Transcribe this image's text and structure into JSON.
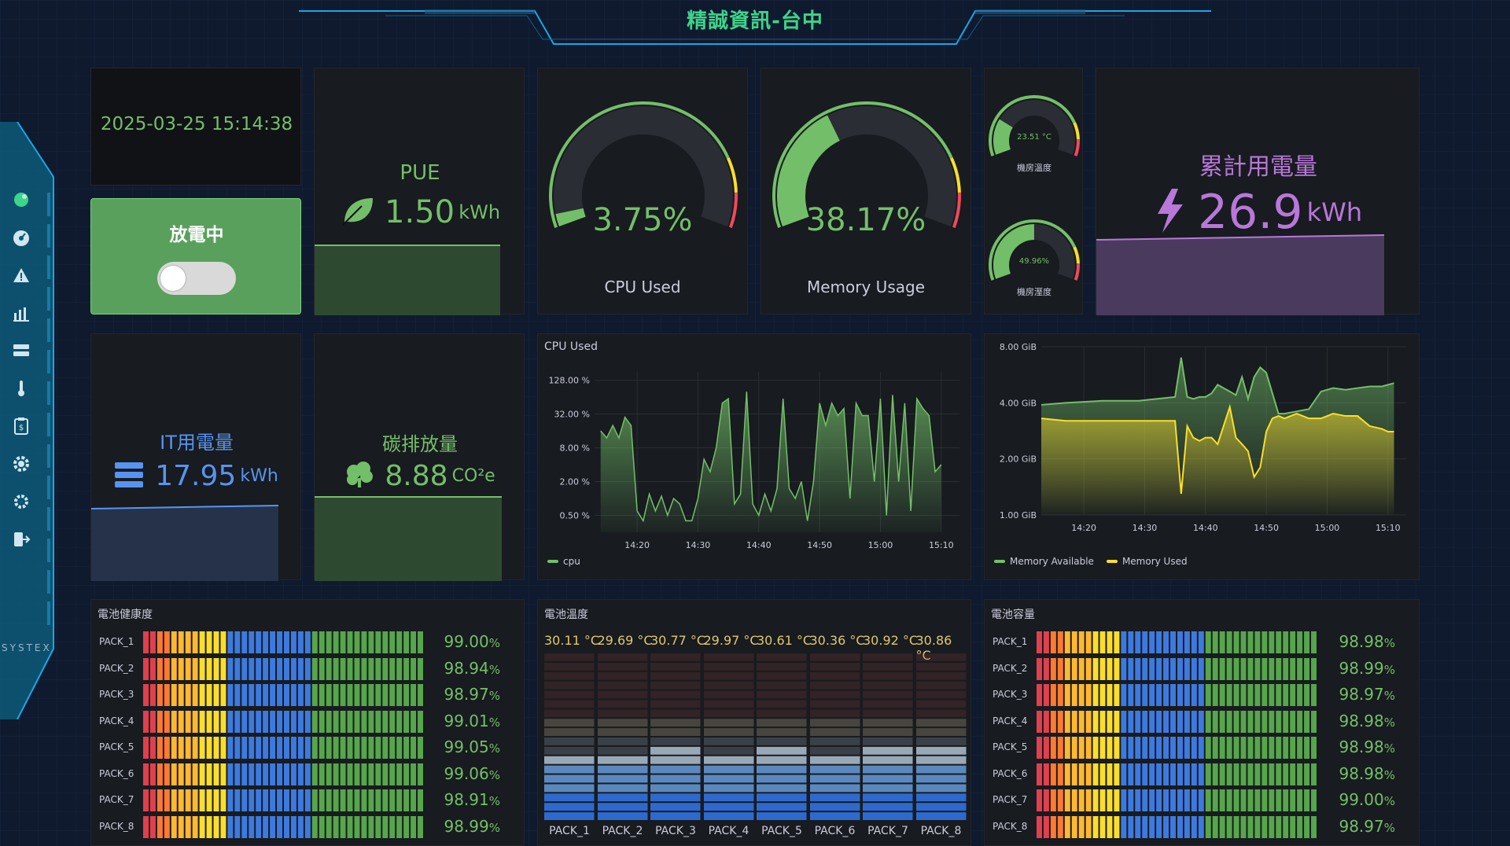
{
  "header": {
    "title": "精誠資訊-台中"
  },
  "sidebar": {
    "logo": "SYSTEX",
    "items": [
      {
        "icon": "logo-dot-icon"
      },
      {
        "icon": "dashboard-gauge-icon"
      },
      {
        "icon": "alert-triangle-icon"
      },
      {
        "icon": "bar-chart-icon"
      },
      {
        "icon": "server-icon"
      },
      {
        "icon": "thermometer-icon"
      },
      {
        "icon": "billing-clipboard-icon"
      },
      {
        "icon": "gear-icon"
      },
      {
        "icon": "cog-icon"
      },
      {
        "icon": "sign-out-icon"
      }
    ]
  },
  "datetime": "2025-03-25 15:14:38",
  "discharge": {
    "label": "放電中",
    "toggle_on": false
  },
  "pue": {
    "label": "PUE",
    "value": "1.50",
    "unit": "kWh"
  },
  "cpu_gauge": {
    "value": "3.75%",
    "label": "CPU Used",
    "percent": 3.75
  },
  "mem_gauge": {
    "value": "38.17%",
    "label": "Memory Usage",
    "percent": 38.17
  },
  "room_temp": {
    "value": "23.51 °C",
    "label": "機房溫度",
    "percent": 23.51
  },
  "room_humidity": {
    "value": "49.96%",
    "label": "機房溼度",
    "percent": 49.96
  },
  "total_power": {
    "label": "累計用電量",
    "value": "26.9",
    "unit": "kWh"
  },
  "it_power": {
    "label": "IT用電量",
    "value": "17.95",
    "unit": "kWh"
  },
  "carbon": {
    "label": "碳排放量",
    "value": "8.88",
    "unit": "CO²e"
  },
  "colors": {
    "green": "#73bf69",
    "yellow": "#fade2a",
    "purple": "#b877d9",
    "blue": "#5794f2",
    "red": "#f2495c",
    "orange": "#ff9830"
  },
  "chart_data": [
    {
      "type": "area",
      "title": "CPU Used",
      "yscale": "log",
      "yticks": [
        "128.00 %",
        "32.00 %",
        "8.00 %",
        "2.00 %",
        "0.50 %"
      ],
      "xticks": [
        "14:20",
        "14:30",
        "14:40",
        "14:50",
        "15:00",
        "15:10"
      ],
      "series": [
        {
          "name": "cpu",
          "color": "#73bf69",
          "x": [
            "14:14",
            "14:15",
            "14:16",
            "14:17",
            "14:18",
            "14:19",
            "14:20",
            "14:21",
            "14:22",
            "14:23",
            "14:24",
            "14:25",
            "14:26",
            "14:27",
            "14:28",
            "14:29",
            "14:30",
            "14:31",
            "14:32",
            "14:33",
            "14:34",
            "14:35",
            "14:36",
            "14:37",
            "14:38",
            "14:39",
            "14:40",
            "14:41",
            "14:42",
            "14:43",
            "14:44",
            "14:45",
            "14:46",
            "14:47",
            "14:48",
            "14:49",
            "14:50",
            "14:51",
            "14:52",
            "14:53",
            "14:54",
            "14:55",
            "14:56",
            "14:57",
            "14:58",
            "14:59",
            "15:00",
            "15:01",
            "15:02",
            "15:03",
            "15:04",
            "15:05",
            "15:06",
            "15:07",
            "15:08",
            "15:09",
            "15:10"
          ],
          "values": [
            16,
            12,
            20,
            12,
            28,
            20,
            0.6,
            0.4,
            1.2,
            0.6,
            1.1,
            0.5,
            1.0,
            0.8,
            0.4,
            0.4,
            1.0,
            5,
            3,
            8,
            50,
            60,
            0.8,
            1.2,
            80,
            0.8,
            0.5,
            1.2,
            0.6,
            1.5,
            60,
            1.5,
            1.0,
            2,
            0.4,
            2,
            50,
            20,
            50,
            30,
            40,
            1.0,
            50,
            30,
            30,
            2,
            60,
            0.5,
            70,
            2,
            50,
            0.6,
            60,
            40,
            30,
            3,
            4
          ]
        }
      ]
    },
    {
      "type": "line",
      "title": "",
      "yscale": "log",
      "yticks": [
        "8.00 GiB",
        "4.00 GiB",
        "2.00 GiB",
        "1.00 GiB"
      ],
      "xticks": [
        "14:20",
        "14:30",
        "14:40",
        "14:50",
        "15:00",
        "15:10"
      ],
      "series": [
        {
          "name": "Memory Available",
          "color": "#73bf69",
          "x": [
            "14:13",
            "14:17",
            "14:23",
            "14:29",
            "14:35",
            "14:36",
            "14:37",
            "14:38",
            "14:39",
            "14:40",
            "14:41",
            "14:42",
            "14:44",
            "14:45",
            "14:46",
            "14:47",
            "14:48",
            "14:49",
            "14:50",
            "14:51",
            "14:52",
            "14:53",
            "14:55",
            "14:57",
            "14:59",
            "15:01",
            "15:03",
            "15:05",
            "15:07",
            "15:09",
            "15:10",
            "15:11"
          ],
          "values": [
            3.9,
            4.0,
            4.1,
            4.1,
            4.3,
            7.0,
            4.3,
            4.2,
            4.3,
            4.3,
            4.5,
            5.0,
            4.6,
            4.4,
            5.5,
            4.2,
            5.5,
            6.2,
            5.8,
            4.5,
            3.5,
            3.5,
            3.6,
            3.7,
            4.6,
            4.8,
            4.7,
            4.8,
            4.9,
            4.9,
            5.0,
            5.1
          ]
        },
        {
          "name": "Memory Used",
          "color": "#fade2a",
          "x": [
            "14:13",
            "14:17",
            "14:23",
            "14:29",
            "14:35",
            "14:36",
            "14:37",
            "14:38",
            "14:39",
            "14:40",
            "14:41",
            "14:42",
            "14:44",
            "14:45",
            "14:46",
            "14:47",
            "14:48",
            "14:49",
            "14:50",
            "14:51",
            "14:52",
            "14:53",
            "14:55",
            "14:57",
            "14:59",
            "15:01",
            "15:03",
            "15:05",
            "15:07",
            "15:09",
            "15:10",
            "15:11"
          ],
          "values": [
            3.3,
            3.2,
            3.2,
            3.2,
            3.2,
            1.3,
            3.0,
            2.6,
            2.5,
            2.6,
            2.6,
            2.4,
            3.8,
            2.6,
            2.4,
            2.2,
            1.6,
            1.8,
            2.8,
            3.3,
            3.4,
            3.3,
            3.5,
            3.3,
            3.3,
            3.5,
            3.4,
            3.4,
            3.0,
            2.9,
            2.8,
            2.8
          ]
        }
      ]
    }
  ],
  "battery_health": {
    "title": "電池健康度",
    "packs": [
      {
        "label": "PACK_1",
        "value": "99.00",
        "unit": "%",
        "percent": 99.0
      },
      {
        "label": "PACK_2",
        "value": "98.94",
        "unit": "%",
        "percent": 98.94
      },
      {
        "label": "PACK_3",
        "value": "98.97",
        "unit": "%",
        "percent": 98.97
      },
      {
        "label": "PACK_4",
        "value": "99.01",
        "unit": "%",
        "percent": 99.01
      },
      {
        "label": "PACK_5",
        "value": "99.05",
        "unit": "%",
        "percent": 99.05
      },
      {
        "label": "PACK_6",
        "value": "99.06",
        "unit": "%",
        "percent": 99.06
      },
      {
        "label": "PACK_7",
        "value": "98.91",
        "unit": "%",
        "percent": 98.91
      },
      {
        "label": "PACK_8",
        "value": "98.99",
        "unit": "%",
        "percent": 98.99
      }
    ]
  },
  "battery_temp": {
    "title": "電池溫度",
    "packs": [
      {
        "label": "PACK_1",
        "value": "30.11 °C",
        "level": 30.11
      },
      {
        "label": "PACK_2",
        "value": "29.69 °C",
        "level": 29.69
      },
      {
        "label": "PACK_3",
        "value": "30.77 °C",
        "level": 30.77
      },
      {
        "label": "PACK_4",
        "value": "29.97 °C",
        "level": 29.97
      },
      {
        "label": "PACK_5",
        "value": "30.61 °C",
        "level": 30.61
      },
      {
        "label": "PACK_6",
        "value": "30.36 °C",
        "level": 30.36
      },
      {
        "label": "PACK_7",
        "value": "30.92 °C",
        "level": 30.92
      },
      {
        "label": "PACK_8",
        "value": "30.86 °C",
        "level": 30.86
      }
    ]
  },
  "battery_capacity": {
    "title": "電池容量",
    "packs": [
      {
        "label": "PACK_1",
        "value": "98.98",
        "unit": "%",
        "percent": 98.98
      },
      {
        "label": "PACK_2",
        "value": "98.99",
        "unit": "%",
        "percent": 98.99
      },
      {
        "label": "PACK_3",
        "value": "98.97",
        "unit": "%",
        "percent": 98.97
      },
      {
        "label": "PACK_4",
        "value": "98.98",
        "unit": "%",
        "percent": 98.98
      },
      {
        "label": "PACK_5",
        "value": "98.98",
        "unit": "%",
        "percent": 98.98
      },
      {
        "label": "PACK_6",
        "value": "98.98",
        "unit": "%",
        "percent": 98.98
      },
      {
        "label": "PACK_7",
        "value": "99.00",
        "unit": "%",
        "percent": 99.0
      },
      {
        "label": "PACK_8",
        "value": "98.97",
        "unit": "%",
        "percent": 98.97
      }
    ]
  }
}
